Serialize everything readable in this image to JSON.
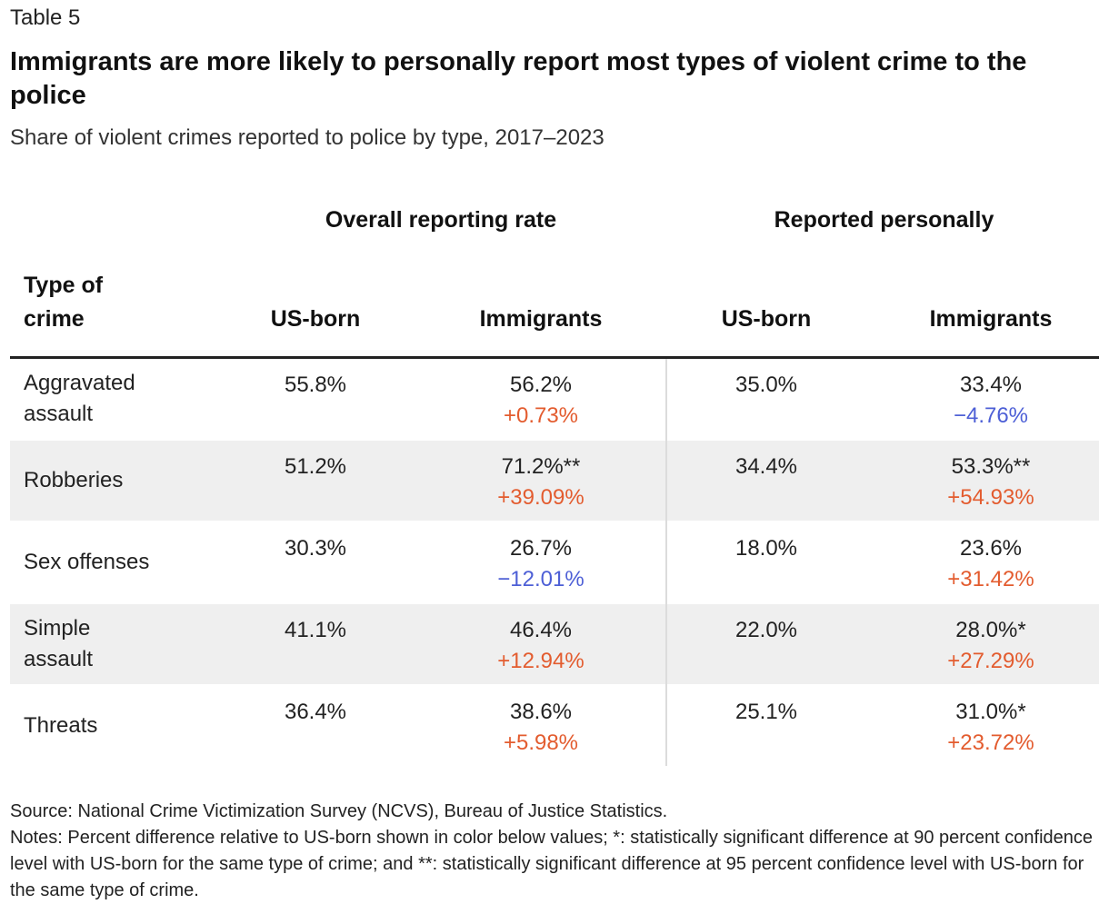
{
  "table_label": "Table 5",
  "title": "Immigrants are more likely to personally report most types of violent crime to the police",
  "subtitle": "Share of violent crimes reported to police by type, 2017–2023",
  "groups": {
    "overall": "Overall reporting rate",
    "personal": "Reported personally"
  },
  "columns": {
    "type": "Type of crime",
    "us_born_overall": "US-born",
    "immigrants_overall": "Immigrants",
    "us_born_personal": "US-born",
    "immigrants_personal": "Immigrants"
  },
  "colors": {
    "positive_diff": "#e35c2f",
    "negative_diff": "#4d5fd6",
    "row_shade": "#efefef"
  },
  "chart_data": {
    "type": "table",
    "title": "Immigrants are more likely to personally report most types of violent crime to the police",
    "subtitle": "Share of violent crimes reported to police by type, 2017–2023",
    "rows": [
      {
        "type": "Aggravated assault",
        "overall_us_born": "55.8%",
        "overall_immigrants": "56.2%",
        "overall_diff": "+0.73%",
        "personal_us_born": "35.0%",
        "personal_immigrants": "33.4%",
        "personal_diff": "−4.76%"
      },
      {
        "type": "Robberies",
        "overall_us_born": "51.2%",
        "overall_immigrants": "71.2%**",
        "overall_diff": "+39.09%",
        "personal_us_born": "34.4%",
        "personal_immigrants": "53.3%**",
        "personal_diff": "+54.93%"
      },
      {
        "type": "Sex offenses",
        "overall_us_born": "30.3%",
        "overall_immigrants": "26.7%",
        "overall_diff": "−12.01%",
        "personal_us_born": "18.0%",
        "personal_immigrants": "23.6%",
        "personal_diff": "+31.42%"
      },
      {
        "type": "Simple assault",
        "overall_us_born": "41.1%",
        "overall_immigrants": "46.4%",
        "overall_diff": "+12.94%",
        "personal_us_born": "22.0%",
        "personal_immigrants": "28.0%*",
        "personal_diff": "+27.29%"
      },
      {
        "type": "Threats",
        "overall_us_born": "36.4%",
        "overall_immigrants": "38.6%",
        "overall_diff": "+5.98%",
        "personal_us_born": "25.1%",
        "personal_immigrants": "31.0%*",
        "personal_diff": "+23.72%"
      }
    ]
  },
  "source": "Source: National Crime Victimization Survey (NCVS), Bureau of Justice Statistics.",
  "notes": "Notes: Percent difference relative to US-born shown in color below values; *: statistically significant difference at 90 percent confidence level with US-born for the same type of crime; and **: statistically significant difference at 95 percent confidence level with US-born for the same type of crime."
}
